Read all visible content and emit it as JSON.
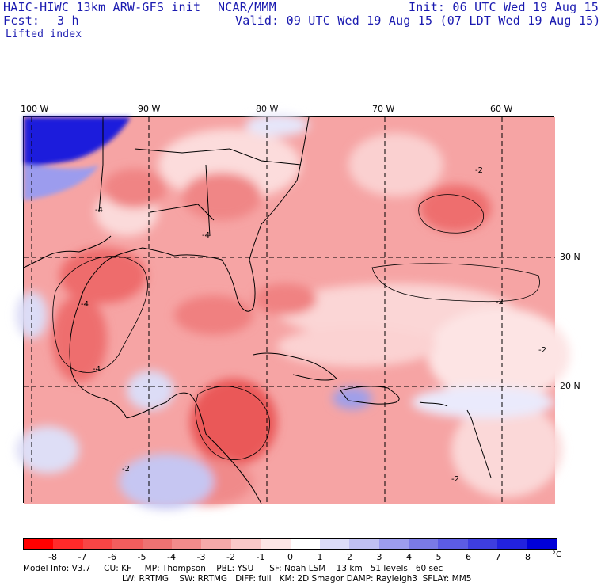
{
  "header": {
    "model_title": "HAIC-HIWC 13km ARW-GFS init",
    "agency": "NCAR/MMM",
    "init_time": "Init: 06 UTC Wed 19 Aug 15",
    "forecast_label": "Fcst:",
    "forecast_value": "3 h",
    "valid_time": "Valid: 09 UTC Wed 19 Aug 15 (07 LDT Wed 19 Aug 15)",
    "field_name": "Lifted index"
  },
  "map": {
    "longitude_labels": [
      "100 W",
      "90 W",
      "80 W",
      "70 W",
      "60 W"
    ],
    "latitude_labels": [
      "30 N",
      "20 N"
    ],
    "contour_labels": [
      "-4",
      "-4",
      "-4",
      "-4",
      "-2",
      "-2",
      "-2",
      "-2",
      "-2"
    ]
  },
  "colorbar": {
    "tick_labels": [
      "-8",
      "-7",
      "-6",
      "-5",
      "-4",
      "-3",
      "-2",
      "-1",
      "0",
      "1",
      "2",
      "3",
      "4",
      "5",
      "6",
      "7",
      "8"
    ],
    "unit": "°C",
    "colors": [
      "#ff0000",
      "#ff2a2a",
      "#f84545",
      "#f25d5d",
      "#ee7272",
      "#f28b8b",
      "#f6a9a9",
      "#fac8c8",
      "#fde6e6",
      "#ffffff",
      "#dcdcf8",
      "#c0c0f2",
      "#9c9cee",
      "#7a7ae6",
      "#5c5ce4",
      "#3e3ee0",
      "#2222de",
      "#0000d8"
    ]
  },
  "footer": {
    "line1": "Model Info: V3.7     CU: KF     MP: Thompson    PBL: YSU      SF: Noah LSM    13 km   51 levels   60 sec",
    "line2": "LW: RRTMG    SW: RRTMG   DIFF: full   KM: 2D Smagor DAMP: Rayleigh3  SFLAY: MM5"
  }
}
